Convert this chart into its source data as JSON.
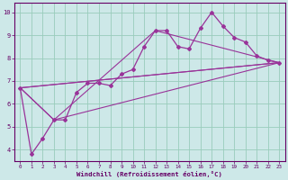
{
  "xlabel": "Windchill (Refroidissement éolien,°C)",
  "background_color": "#cde8e8",
  "line_color": "#993399",
  "grid_color": "#99ccbb",
  "xlim": [
    -0.5,
    23.5
  ],
  "ylim": [
    3.5,
    10.4
  ],
  "xticks": [
    0,
    1,
    2,
    3,
    4,
    5,
    6,
    7,
    8,
    9,
    10,
    11,
    12,
    13,
    14,
    15,
    16,
    17,
    18,
    19,
    20,
    21,
    22,
    23
  ],
  "yticks": [
    4,
    5,
    6,
    7,
    8,
    9,
    10
  ],
  "main_x": [
    0,
    1,
    2,
    3,
    4,
    5,
    6,
    7,
    8,
    9,
    10,
    11,
    12,
    13,
    14,
    15,
    16,
    17,
    18,
    19,
    20,
    21,
    22,
    23
  ],
  "main_y": [
    6.7,
    3.8,
    4.5,
    5.3,
    5.3,
    6.5,
    6.9,
    6.9,
    6.8,
    7.3,
    7.5,
    8.5,
    9.2,
    9.2,
    8.5,
    8.4,
    9.3,
    10.0,
    9.4,
    8.9,
    8.7,
    8.1,
    7.9,
    7.8
  ],
  "ref_lines": [
    {
      "x": [
        0,
        23
      ],
      "y": [
        6.7,
        7.8
      ]
    },
    {
      "x": [
        0,
        23
      ],
      "y": [
        6.7,
        7.8
      ]
    },
    {
      "x": [
        0,
        3,
        23
      ],
      "y": [
        6.7,
        5.3,
        7.8
      ]
    },
    {
      "x": [
        0,
        3,
        12,
        23
      ],
      "y": [
        6.7,
        5.3,
        9.2,
        7.8
      ]
    }
  ]
}
